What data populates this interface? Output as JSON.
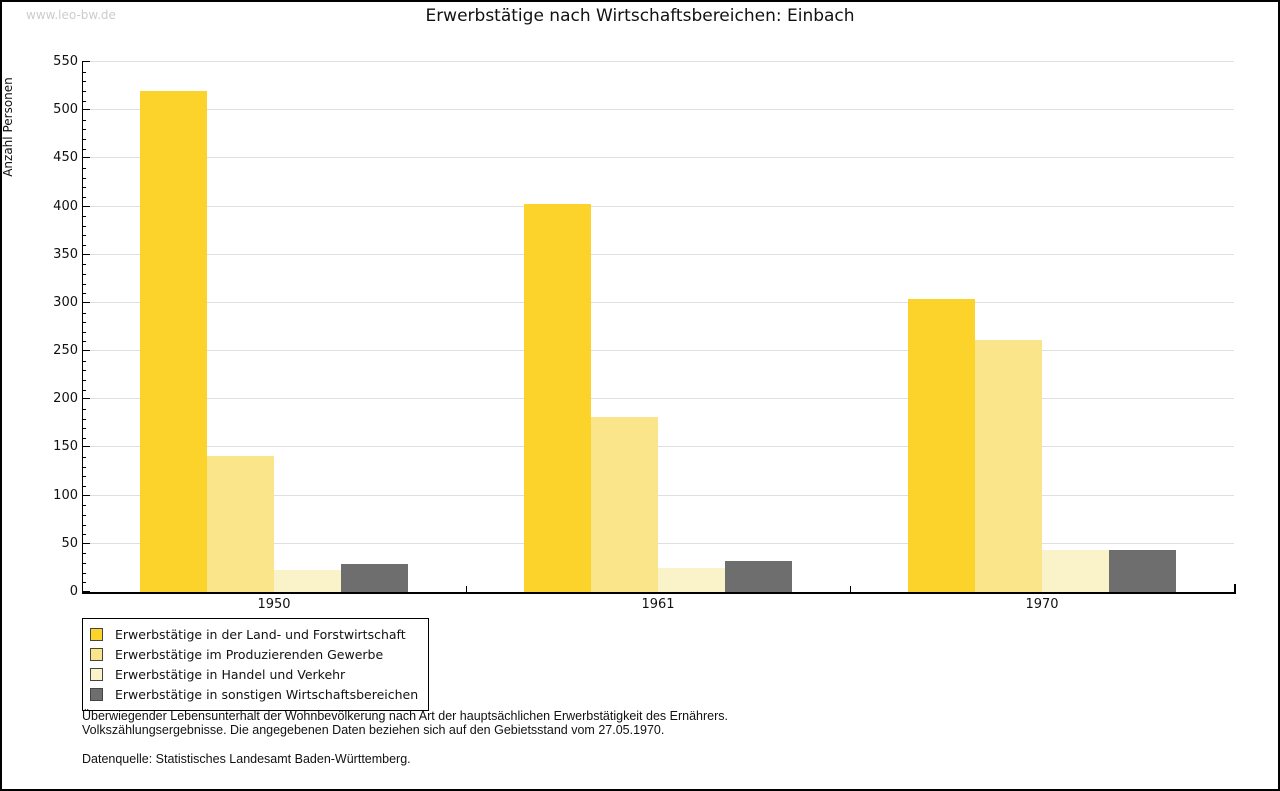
{
  "watermark": "www.leo-bw.de",
  "title": "Erwerbstätige nach Wirtschaftsbereichen: Einbach",
  "chart_data": {
    "type": "bar",
    "title": "Erwerbstätige nach Wirtschaftsbereichen: Einbach",
    "categories": [
      "1950",
      "1961",
      "1970"
    ],
    "series": [
      {
        "name": "Erwerbstätige in der Land- und Forstwirtschaft",
        "color": "#FCD32B",
        "values": [
          520,
          403,
          304
        ]
      },
      {
        "name": "Erwerbstätige im Produzierenden Gewerbe",
        "color": "#FBE58A",
        "values": [
          141,
          182,
          261
        ]
      },
      {
        "name": "Erwerbstätige in Handel und Verkehr",
        "color": "#FAF2C8",
        "values": [
          23,
          25,
          44
        ]
      },
      {
        "name": "Erwerbstätige in sonstigen Wirtschaftsbereichen",
        "color": "#6E6E6E",
        "values": [
          29,
          32,
          44
        ]
      }
    ],
    "xlabel": "",
    "ylabel": "Anzahl Personen",
    "ylim": [
      0,
      550
    ],
    "ytick_step": 50,
    "y_minor_step": 10,
    "grid": true,
    "gridline_color": "#dfdfdf",
    "axis_color": "#000000",
    "legend_position": "bottom-left"
  },
  "footer": {
    "line1": "Überwiegender Lebensunterhalt der Wohnbevölkerung nach Art der hauptsächlichen Erwerbstätigkeit des Ernährers.",
    "line2": "Volkszählungsergebnisse. Die angegebenen Daten beziehen sich auf den Gebietsstand vom 27.05.1970.",
    "source": "Datenquelle: Statistisches Landesamt Baden-Württemberg."
  }
}
